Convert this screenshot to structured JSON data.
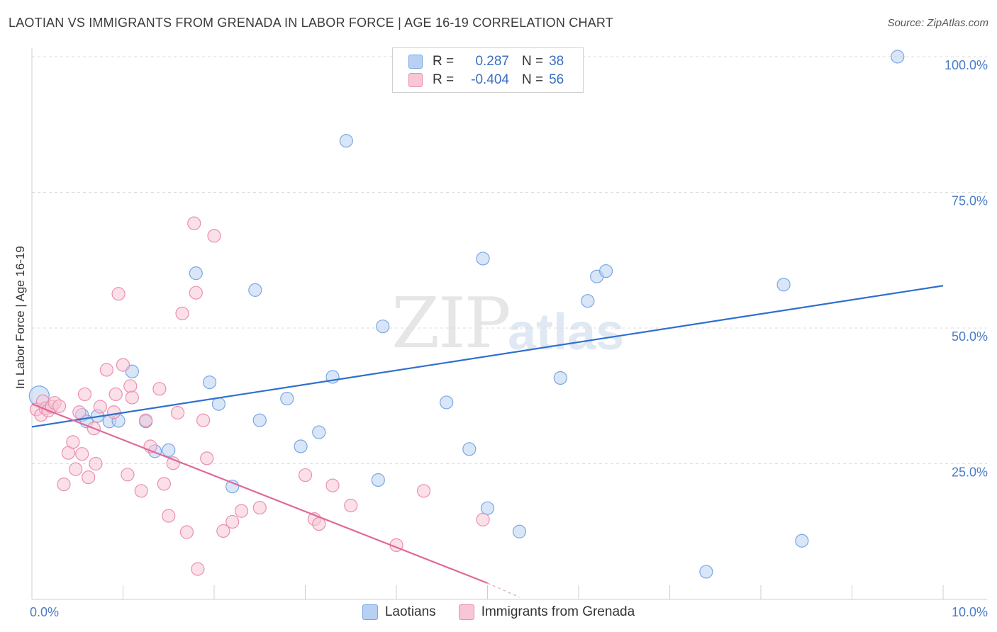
{
  "title": "LAOTIAN VS IMMIGRANTS FROM GRENADA IN LABOR FORCE | AGE 16-19 CORRELATION CHART",
  "source": "Source: ZipAtlas.com",
  "watermark": {
    "zip": "ZIP",
    "atlas": "atlas"
  },
  "legend": {
    "rows": [
      {
        "r_label": "R =",
        "r_value": "0.287",
        "n_label": "N =",
        "n_value": "38",
        "color": "#b8d1f2",
        "border": "#7aa6e3"
      },
      {
        "r_label": "R =",
        "r_value": "-0.404",
        "n_label": "N =",
        "n_value": "56",
        "color": "#f8c6d6",
        "border": "#ea8fb0"
      }
    ]
  },
  "bottom_legend": [
    {
      "label": "Laotians",
      "color": "#b8d1f2",
      "border": "#7aa6e3"
    },
    {
      "label": "Immigrants from Grenada",
      "color": "#f8c6d6",
      "border": "#ea8fb0"
    }
  ],
  "chart_data": {
    "type": "scatter",
    "ylabel": "In Labor Force | Age 16-19",
    "xlim": [
      0,
      10
    ],
    "ylim": [
      0,
      100
    ],
    "x_tick_labels": [
      {
        "value": 0,
        "label": "0.0%"
      },
      {
        "value": 10,
        "label": "10.0%"
      }
    ],
    "y_tick_labels": [
      {
        "value": 25,
        "label": "25.0%"
      },
      {
        "value": 50,
        "label": "50.0%"
      },
      {
        "value": 75,
        "label": "75.0%"
      },
      {
        "value": 100,
        "label": "100.0%"
      }
    ],
    "series": [
      {
        "name": "Laotians",
        "color": "#7aa6e3",
        "fill": "#b8d1f2",
        "line_color": "#2f6fce",
        "trend": {
          "x0": 0,
          "y0": 31.8,
          "x1": 10,
          "y1": 57.8
        },
        "points": [
          [
            0.08,
            37.5,
            14
          ],
          [
            0.55,
            34,
            9
          ],
          [
            0.6,
            32.8,
            9
          ],
          [
            0.72,
            33.8,
            9
          ],
          [
            0.85,
            32.8,
            9
          ],
          [
            0.95,
            32.9,
            9
          ],
          [
            1.1,
            42,
            9
          ],
          [
            1.25,
            32.8,
            9
          ],
          [
            1.35,
            27.3,
            9
          ],
          [
            1.5,
            27.5,
            9
          ],
          [
            1.8,
            60.1,
            9
          ],
          [
            1.95,
            40,
            9
          ],
          [
            2.05,
            36,
            9
          ],
          [
            2.2,
            20.8,
            9
          ],
          [
            2.45,
            57,
            9
          ],
          [
            2.5,
            33,
            9
          ],
          [
            2.8,
            37,
            9
          ],
          [
            2.95,
            28.2,
            9
          ],
          [
            3.15,
            30.8,
            9
          ],
          [
            3.3,
            41,
            9
          ],
          [
            3.45,
            84.5,
            9
          ],
          [
            3.8,
            22,
            9
          ],
          [
            3.85,
            50.3,
            9
          ],
          [
            4.55,
            36.3,
            9
          ],
          [
            4.8,
            27.7,
            9
          ],
          [
            4.95,
            62.8,
            9
          ],
          [
            5.0,
            16.8,
            9
          ],
          [
            5.35,
            12.5,
            9
          ],
          [
            5.8,
            40.8,
            9
          ],
          [
            6.1,
            55,
            9
          ],
          [
            6.2,
            59.5,
            9
          ],
          [
            6.3,
            60.5,
            9
          ],
          [
            7.4,
            5.1,
            9
          ],
          [
            8.25,
            58,
            9
          ],
          [
            8.45,
            10.8,
            9
          ],
          [
            9.5,
            100,
            9
          ]
        ]
      },
      {
        "name": "Immigrants from Grenada",
        "color": "#ea8fb0",
        "fill": "#f8c6d6",
        "line_color": "#e0689a",
        "trend": {
          "x0": 0,
          "y0": 36.0,
          "x1": 5.0,
          "y1": 3.0
        },
        "trend_dash": {
          "x0": 5.0,
          "y0": 3.0,
          "x1": 5.35,
          "y1": 0.4
        },
        "points": [
          [
            0.05,
            35,
            9
          ],
          [
            0.1,
            34,
            9
          ],
          [
            0.12,
            36.5,
            9
          ],
          [
            0.15,
            35.2,
            9
          ],
          [
            0.18,
            34.8,
            9
          ],
          [
            0.22,
            35.5,
            9
          ],
          [
            0.25,
            36.2,
            9
          ],
          [
            0.3,
            35.6,
            9
          ],
          [
            0.35,
            21.2,
            9
          ],
          [
            0.4,
            27,
            9
          ],
          [
            0.45,
            29,
            9
          ],
          [
            0.48,
            24,
            9
          ],
          [
            0.52,
            34.5,
            9
          ],
          [
            0.55,
            26.8,
            9
          ],
          [
            0.58,
            37.8,
            9
          ],
          [
            0.62,
            22.5,
            9
          ],
          [
            0.68,
            31.5,
            9
          ],
          [
            0.7,
            25,
            9
          ],
          [
            0.75,
            35.5,
            9
          ],
          [
            0.82,
            42.3,
            9
          ],
          [
            0.9,
            34.5,
            9
          ],
          [
            0.92,
            37.8,
            9
          ],
          [
            0.95,
            56.3,
            9
          ],
          [
            1.0,
            43.2,
            9
          ],
          [
            1.05,
            23,
            9
          ],
          [
            1.08,
            39.3,
            9
          ],
          [
            1.1,
            37.2,
            9
          ],
          [
            1.2,
            20,
            9
          ],
          [
            1.25,
            33,
            9
          ],
          [
            1.3,
            28.2,
            9
          ],
          [
            1.4,
            38.8,
            9
          ],
          [
            1.45,
            21.3,
            9
          ],
          [
            1.5,
            15.4,
            9
          ],
          [
            1.55,
            25.1,
            9
          ],
          [
            1.6,
            34.4,
            9
          ],
          [
            1.65,
            52.7,
            9
          ],
          [
            1.7,
            12.4,
            9
          ],
          [
            1.78,
            69.3,
            9
          ],
          [
            1.8,
            56.5,
            9
          ],
          [
            1.82,
            5.6,
            9
          ],
          [
            1.88,
            33,
            9
          ],
          [
            1.92,
            26,
            9
          ],
          [
            2.0,
            67,
            9
          ],
          [
            2.1,
            12.6,
            9
          ],
          [
            2.2,
            14.3,
            9
          ],
          [
            2.3,
            16.3,
            9
          ],
          [
            2.5,
            16.9,
            9
          ],
          [
            3.0,
            22.9,
            9
          ],
          [
            3.1,
            14.8,
            9
          ],
          [
            3.15,
            13.9,
            9
          ],
          [
            3.3,
            21,
            9
          ],
          [
            3.5,
            17.3,
            9
          ],
          [
            4.0,
            10,
            9
          ],
          [
            4.3,
            20,
            9
          ],
          [
            4.95,
            14.7,
            9
          ]
        ]
      }
    ]
  }
}
